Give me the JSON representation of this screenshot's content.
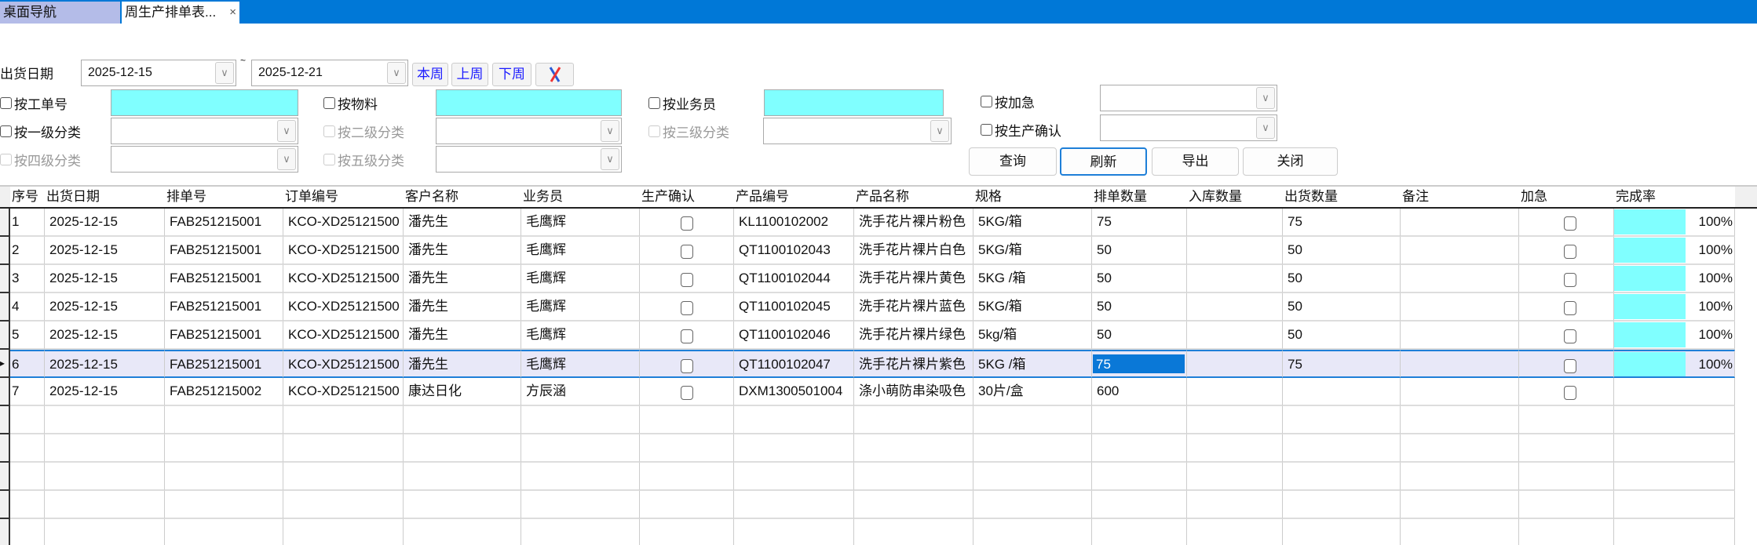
{
  "tabs": [
    {
      "label": "桌面导航"
    },
    {
      "label": "周生产排单表...",
      "close": "×"
    }
  ],
  "filters": {
    "date_label": "出货日期",
    "date_from": "2025-12-15",
    "date_to": "2025-12-21",
    "tilde": "~",
    "this_week": "本周",
    "last_week": "上周",
    "next_week": "下周",
    "clear_icon": "tools-icon",
    "by_work_order": "按工单号",
    "by_material": "按物料",
    "by_salesman": "按业务员",
    "by_urgent": "按加急",
    "by_cat1": "按一级分类",
    "by_cat2": "按二级分类",
    "by_cat3": "按三级分类",
    "by_prod_confirm": "按生产确认",
    "by_cat4": "按四级分类",
    "by_cat5": "按五级分类",
    "input_color": "#80ffff"
  },
  "buttons": {
    "query": "查询",
    "refresh": "刷新",
    "export": "导出",
    "close": "关闭"
  },
  "table": {
    "columns": [
      "序号",
      "出货日期",
      "排单号",
      "订单编号",
      "客户名称",
      "业务员",
      "生产确认",
      "产品编号",
      "产品名称",
      "规格",
      "排单数量",
      "入库数量",
      "出货数量",
      "备注",
      "加急",
      "完成率"
    ],
    "rows": [
      [
        "1",
        "2025-12-15",
        "FAB251215001",
        "KCO-XD25121500",
        "潘先生",
        "毛鹰辉",
        "",
        "KL1100102002",
        "洗手花片裸片粉色",
        "5KG/箱",
        "75",
        "",
        "75",
        "",
        "",
        "100%"
      ],
      [
        "2",
        "2025-12-15",
        "FAB251215001",
        "KCO-XD25121500",
        "潘先生",
        "毛鹰辉",
        "",
        "QT1100102043",
        "洗手花片裸片白色",
        "5KG/箱",
        "50",
        "",
        "50",
        "",
        "",
        "100%"
      ],
      [
        "3",
        "2025-12-15",
        "FAB251215001",
        "KCO-XD25121500",
        "潘先生",
        "毛鹰辉",
        "",
        "QT1100102044",
        "洗手花片裸片黄色",
        "5KG /箱",
        "50",
        "",
        "50",
        "",
        "",
        "100%"
      ],
      [
        "4",
        "2025-12-15",
        "FAB251215001",
        "KCO-XD25121500",
        "潘先生",
        "毛鹰辉",
        "",
        "QT1100102045",
        "洗手花片裸片蓝色",
        "5KG/箱",
        "50",
        "",
        "50",
        "",
        "",
        "100%"
      ],
      [
        "5",
        "2025-12-15",
        "FAB251215001",
        "KCO-XD25121500",
        "潘先生",
        "毛鹰辉",
        "",
        "QT1100102046",
        "洗手花片裸片绿色",
        "5kg/箱",
        "50",
        "",
        "50",
        "",
        "",
        "100%"
      ],
      [
        "6",
        "2025-12-15",
        "FAB251215001",
        "KCO-XD25121500",
        "潘先生",
        "毛鹰辉",
        "",
        "QT1100102047",
        "洗手花片裸片紫色",
        "5KG /箱",
        "75",
        "",
        "75",
        "",
        "",
        "100%"
      ],
      [
        "7",
        "2025-12-15",
        "FAB251215002",
        "KCO-XD25121500",
        "康达日化",
        "方辰涵",
        "",
        "DXM1300501004",
        "涤小萌防串染吸色",
        "30片/盒",
        "600",
        "",
        "",
        "",
        "",
        ""
      ]
    ],
    "completion": [
      1,
      1,
      1,
      1,
      1,
      1,
      null
    ],
    "selected_row": 6,
    "selected_column": "排单数量"
  }
}
